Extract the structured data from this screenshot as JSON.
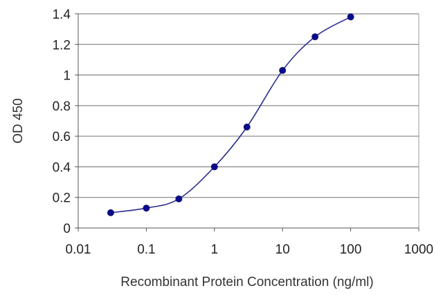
{
  "chart_data": {
    "type": "line",
    "title": "",
    "xlabel": "Recombinant Protein Concentration (ng/ml)",
    "ylabel": "OD 450",
    "xscale": "log",
    "xlim": [
      0.01,
      1000
    ],
    "ylim": [
      0,
      1.4
    ],
    "xticks": [
      0.01,
      0.1,
      1,
      10,
      100,
      1000
    ],
    "xtick_labels": [
      "0.01",
      "0.1",
      "1",
      "10",
      "100",
      "1000"
    ],
    "yticks": [
      0,
      0.2,
      0.4,
      0.6,
      0.8,
      1,
      1.2,
      1.4
    ],
    "ytick_labels": [
      "0",
      "0.2",
      "0.4",
      "0.6",
      "0.8",
      "1",
      "1.2",
      "1.4"
    ],
    "grid": "horizontal",
    "legend": "none",
    "series": [
      {
        "x": [
          0.03,
          0.1,
          0.3,
          1,
          3,
          10,
          30,
          100
        ],
        "y": [
          0.1,
          0.13,
          0.19,
          0.4,
          0.66,
          1.03,
          1.25,
          1.38
        ],
        "color": "#2b2b8f",
        "marker_color": "#0a0a8c"
      }
    ]
  }
}
